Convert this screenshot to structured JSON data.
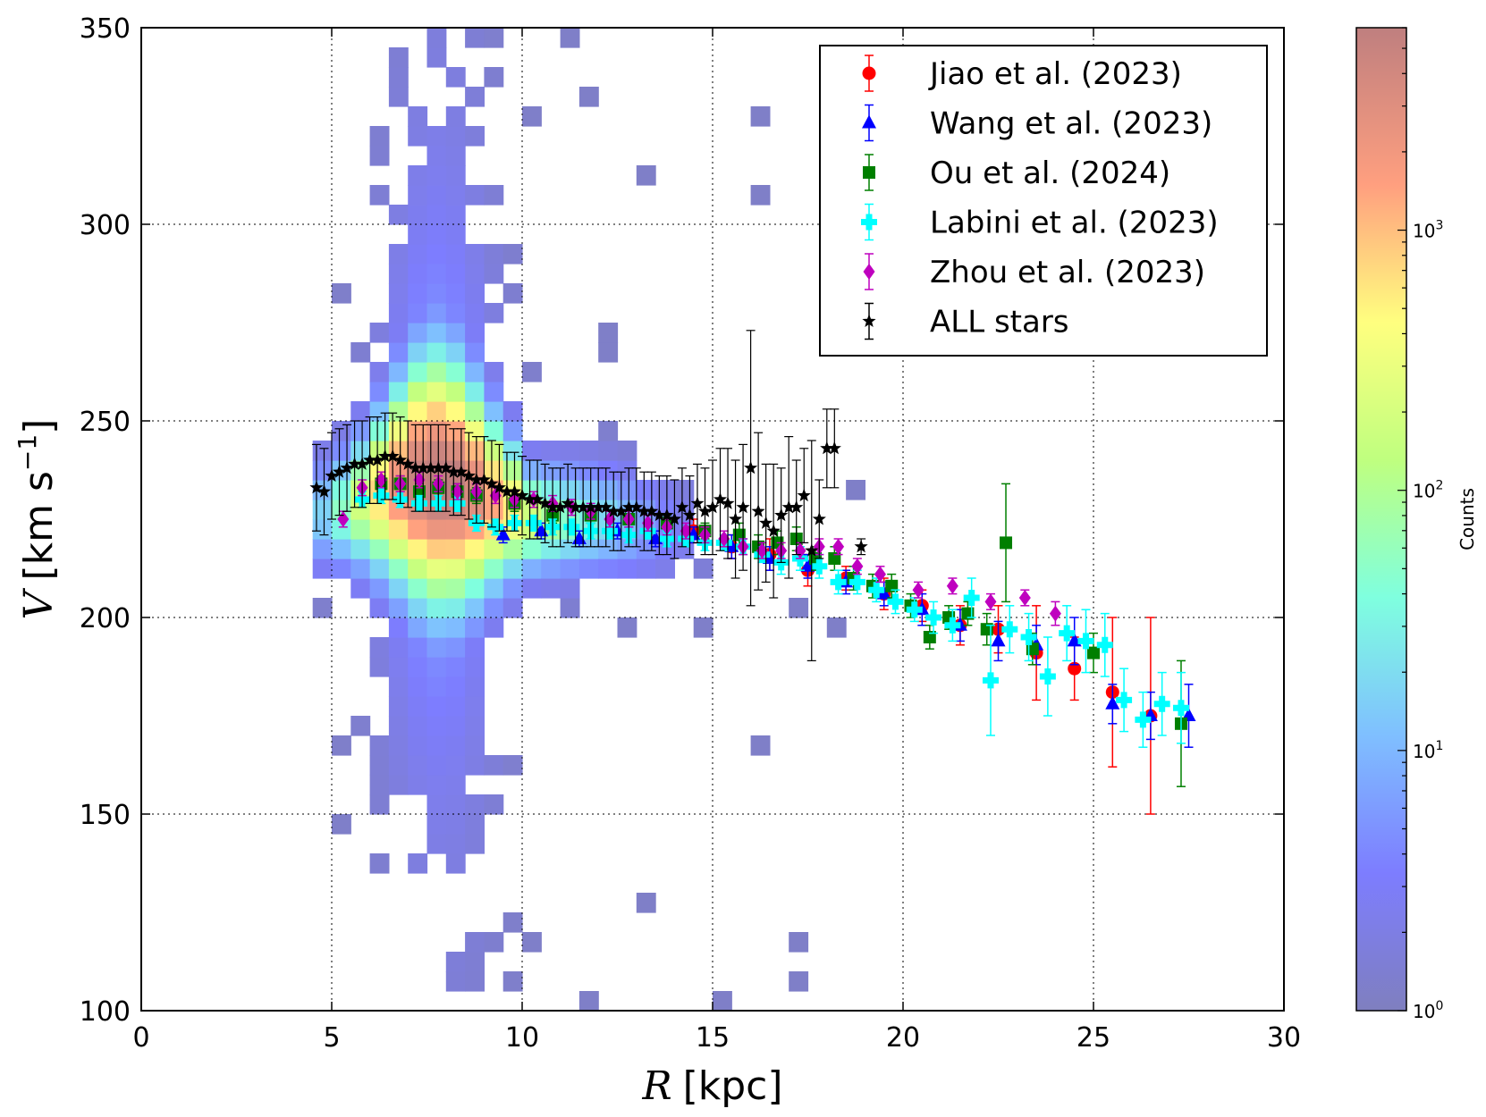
{
  "chart_data": {
    "type": "scatter",
    "title": "",
    "xlabel_var": "R",
    "xlabel_unit": "[kpc]",
    "ylabel_var": "V",
    "ylabel_unit": "[km s",
    "ylabel_exp": "−1",
    "ylabel_close": "]",
    "xlim": [
      0,
      30
    ],
    "ylim": [
      100,
      350
    ],
    "xticks": [
      "0",
      "5",
      "10",
      "15",
      "20",
      "25",
      "30"
    ],
    "yticks": [
      "100",
      "150",
      "200",
      "250",
      "300",
      "350"
    ],
    "grid": true,
    "legend_position": "top-right",
    "colorbar": {
      "label": "Counts",
      "scale": "log",
      "range": [
        1,
        6000
      ],
      "tick_bases": [
        "10",
        "10",
        "10",
        "10"
      ],
      "tick_exps": [
        "0",
        "1",
        "2",
        "3"
      ]
    },
    "series": [
      {
        "name": "Jiao et al. (2023)",
        "color": "#ff0000",
        "marker": "circle",
        "x": [
          14.5,
          15.5,
          16.5,
          17.5,
          18.5,
          19.5,
          20.5,
          21.5,
          22.5,
          23.5,
          24.5,
          25.5,
          26.5
        ],
        "y": [
          222,
          218,
          216,
          212,
          210,
          206,
          203,
          198,
          197,
          191,
          187,
          181,
          175
        ],
        "err": [
          3,
          3,
          4,
          4,
          3,
          4,
          4,
          5,
          6,
          12,
          8,
          19,
          25
        ]
      },
      {
        "name": "Wang et al. (2023)",
        "color": "#0000ff",
        "marker": "triangle",
        "x": [
          9.5,
          10.5,
          11.5,
          12.5,
          13.5,
          14.5,
          15.5,
          16.5,
          17.5,
          18.5,
          19.5,
          20.5,
          21.5,
          22.5,
          23.5,
          24.5,
          25.5,
          26.5,
          27.5
        ],
        "y": [
          221,
          222,
          220,
          222,
          220,
          221,
          218,
          215,
          213,
          209,
          206,
          202,
          198,
          194,
          193,
          194,
          178,
          175,
          175
        ],
        "err": [
          2,
          2,
          2,
          2,
          2,
          2,
          3,
          3,
          3,
          3,
          3,
          4,
          4,
          5,
          5,
          6,
          5,
          6,
          8
        ]
      },
      {
        "name": "Ou et al. (2024)",
        "color": "#007f00",
        "marker": "square",
        "x": [
          6.3,
          6.8,
          7.3,
          7.8,
          8.3,
          8.8,
          9.8,
          10.8,
          11.8,
          12.8,
          13.8,
          14.8,
          15.7,
          16.2,
          16.7,
          17.2,
          17.7,
          18.2,
          18.7,
          19.2,
          19.7,
          20.2,
          20.7,
          21.2,
          21.7,
          22.2,
          22.7,
          23.4,
          25.0,
          27.3
        ],
        "y": [
          234,
          234,
          232,
          233,
          232,
          231,
          229,
          226,
          226,
          225,
          224,
          222,
          221,
          218,
          219,
          220,
          215,
          215,
          210,
          208,
          208,
          203,
          195,
          200,
          201,
          197,
          219,
          192,
          191,
          173
        ],
        "err": [
          2,
          2,
          2,
          2,
          2,
          2,
          2,
          2,
          2,
          2,
          2,
          2,
          3,
          3,
          3,
          3,
          3,
          3,
          3,
          3,
          3,
          3,
          3,
          3,
          3,
          4,
          15,
          4,
          5,
          16
        ]
      },
      {
        "name": "Labini et al. (2023)",
        "color": "#00ffff",
        "marker": "plus",
        "x": [
          5.8,
          6.3,
          6.8,
          7.3,
          7.8,
          8.3,
          8.8,
          9.3,
          9.8,
          10.3,
          10.8,
          11.3,
          11.8,
          12.3,
          12.8,
          13.3,
          13.8,
          14.3,
          14.8,
          15.3,
          15.8,
          16.3,
          16.8,
          17.3,
          17.8,
          18.3,
          18.8,
          19.3,
          19.8,
          20.3,
          20.8,
          21.3,
          21.8,
          22.3,
          22.8,
          23.3,
          23.8,
          24.3,
          24.8,
          25.3,
          25.8,
          26.3,
          26.8,
          27.3
        ],
        "y": [
          230,
          231,
          230,
          229,
          229,
          229,
          224,
          223,
          224,
          224,
          223,
          223,
          222,
          222,
          221,
          222,
          220,
          220,
          219,
          219,
          218,
          216,
          214,
          215,
          213,
          209,
          209,
          207,
          204,
          202,
          200,
          198,
          205,
          184,
          197,
          195,
          185,
          196,
          194,
          193,
          179,
          174,
          178,
          177
        ],
        "err": [
          2,
          2,
          2,
          2,
          2,
          2,
          2,
          2,
          2,
          2,
          2,
          2,
          2,
          2,
          2,
          2,
          2,
          2,
          2,
          2,
          2,
          2,
          3,
          3,
          3,
          3,
          3,
          3,
          3,
          3,
          4,
          4,
          5,
          14,
          6,
          6,
          10,
          7,
          8,
          8,
          8,
          7,
          8,
          9
        ]
      },
      {
        "name": "Zhou et al. (2023)",
        "color": "#bf00bf",
        "marker": "diamond",
        "x": [
          5.3,
          5.8,
          6.3,
          6.8,
          7.3,
          7.8,
          8.3,
          8.8,
          9.3,
          9.8,
          10.3,
          10.8,
          11.3,
          11.8,
          12.3,
          12.8,
          13.3,
          13.8,
          14.3,
          14.8,
          15.3,
          15.8,
          16.3,
          16.8,
          17.3,
          17.8,
          18.3,
          18.8,
          19.4,
          20.4,
          21.3,
          22.3,
          23.2,
          24.0
        ],
        "y": [
          225,
          233,
          235,
          234,
          235,
          234,
          232,
          232,
          231,
          230,
          230,
          229,
          228,
          227,
          225,
          225,
          224,
          223,
          222,
          221,
          220,
          218,
          217,
          217,
          217,
          218,
          218,
          213,
          211,
          207,
          208,
          204,
          205,
          201
        ],
        "err": [
          2,
          2,
          2,
          2,
          2,
          2,
          2,
          2,
          2,
          2,
          2,
          2,
          2,
          2,
          2,
          2,
          2,
          2,
          2,
          2,
          2,
          2,
          2,
          2,
          2,
          2,
          2,
          2,
          2,
          2,
          2,
          2,
          2,
          3
        ]
      },
      {
        "name": "ALL stars",
        "color": "#000000",
        "marker": "star",
        "x": [
          4.6,
          4.8,
          5.0,
          5.2,
          5.4,
          5.6,
          5.8,
          6.0,
          6.2,
          6.4,
          6.6,
          6.8,
          7.0,
          7.2,
          7.4,
          7.6,
          7.8,
          8.0,
          8.2,
          8.4,
          8.6,
          8.8,
          9.0,
          9.2,
          9.4,
          9.6,
          9.8,
          10.0,
          10.2,
          10.4,
          10.6,
          10.8,
          11.0,
          11.2,
          11.4,
          11.6,
          11.8,
          12.0,
          12.2,
          12.4,
          12.6,
          12.8,
          13.0,
          13.2,
          13.4,
          13.6,
          13.8,
          14.0,
          14.2,
          14.4,
          14.6,
          14.8,
          15.0,
          15.2,
          15.4,
          15.6,
          15.8,
          16.0,
          16.2,
          16.4,
          16.6,
          16.8,
          17.0,
          17.2,
          17.4,
          17.6,
          17.8,
          18.0,
          18.2,
          18.9
        ],
        "y": [
          233,
          232,
          236,
          237,
          238,
          239,
          239,
          240,
          240,
          241,
          241,
          240,
          239,
          238,
          238,
          238,
          238,
          238,
          237,
          237,
          236,
          235,
          235,
          234,
          233,
          232,
          232,
          231,
          230,
          230,
          229,
          228,
          228,
          229,
          228,
          228,
          228,
          228,
          228,
          227,
          227,
          228,
          228,
          227,
          227,
          226,
          226,
          225,
          228,
          226,
          229,
          227,
          228,
          230,
          229,
          225,
          228,
          238,
          227,
          224,
          222,
          226,
          228,
          228,
          231,
          217,
          225,
          243,
          243,
          218
        ],
        "err": [
          11,
          11,
          11,
          11,
          11,
          11,
          11,
          11,
          11,
          11,
          11,
          11,
          11,
          11,
          11,
          11,
          11,
          11,
          11,
          11,
          11,
          11,
          11,
          11,
          11,
          10,
          10,
          10,
          10,
          10,
          10,
          10,
          10,
          10,
          10,
          10,
          10,
          10,
          10,
          10,
          10,
          10,
          10,
          10,
          10,
          10,
          10,
          10,
          10,
          10,
          10,
          11,
          12,
          13,
          14,
          15,
          16,
          35,
          20,
          15,
          17,
          12,
          18,
          12,
          12,
          28,
          10,
          10,
          10,
          2
        ]
      }
    ]
  }
}
